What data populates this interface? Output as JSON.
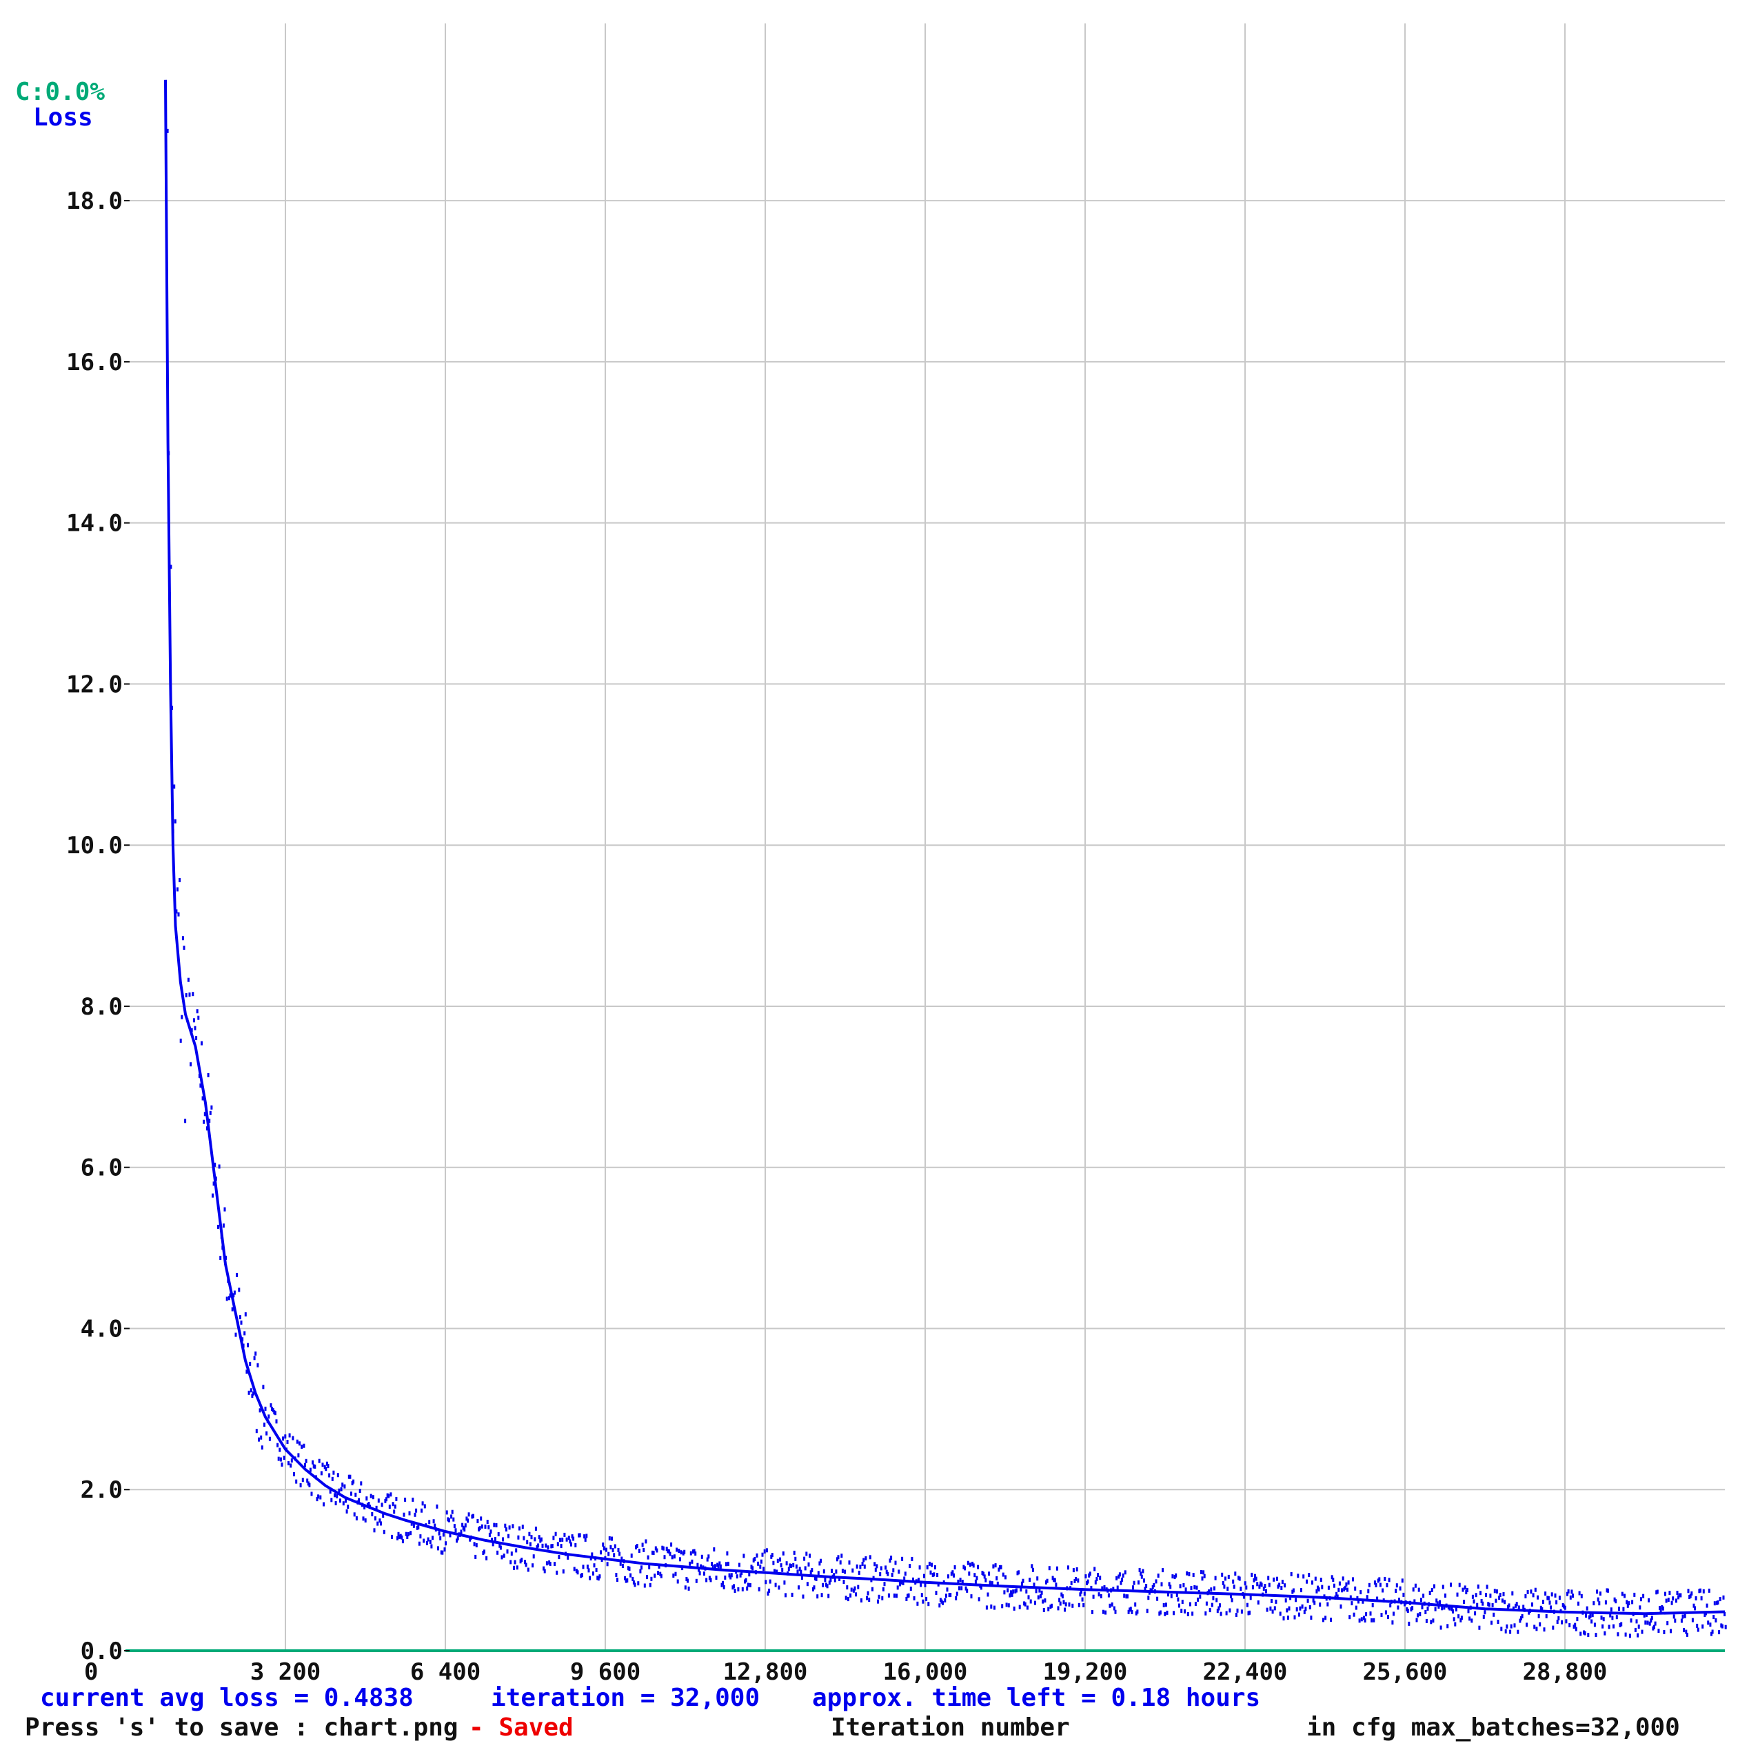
{
  "chart_data": {
    "type": "line",
    "accuracy_label": "C:0.0%",
    "loss_label": "Loss",
    "xlabel": "Iteration number",
    "ylabel": "Loss",
    "xlim": [
      0,
      32000
    ],
    "ylim": [
      0,
      20.2
    ],
    "y_ticks": [
      0,
      2,
      4,
      6,
      8,
      10,
      12,
      14,
      16,
      18
    ],
    "y_tick_labels": [
      "0.0",
      "2.0",
      "4.0",
      "6.0",
      "8.0",
      "10.0",
      "12.0",
      "14.0",
      "16.0",
      "18.0"
    ],
    "x_ticks": [
      0,
      3200,
      6400,
      9600,
      12800,
      16000,
      19200,
      22400,
      25600,
      28800
    ],
    "x_tick_labels": [
      "0",
      "3 200",
      "6 400",
      "9 600",
      "12,800",
      "16,000",
      "19,200",
      "22,400",
      "25,600",
      "28,800"
    ],
    "grid": true,
    "series": [
      {
        "name": "Loss",
        "color": "#0000ee",
        "x": [
          800,
          850,
          900,
          950,
          1000,
          1100,
          1200,
          1400,
          1600,
          1800,
          2000,
          2200,
          2400,
          2600,
          2800,
          3000,
          3200,
          3600,
          4000,
          4400,
          4800,
          5200,
          5600,
          6000,
          6400,
          7200,
          8000,
          8800,
          9600,
          10400,
          11200,
          12000,
          12800,
          14000,
          15200,
          16000,
          17600,
          19200,
          20800,
          22400,
          24000,
          25600,
          27200,
          28800,
          30400,
          32000
        ],
        "y": [
          19.5,
          15.0,
          12.0,
          10.0,
          9.0,
          8.3,
          7.9,
          7.5,
          6.8,
          5.8,
          4.8,
          4.2,
          3.6,
          3.2,
          2.9,
          2.7,
          2.5,
          2.25,
          2.05,
          1.9,
          1.8,
          1.7,
          1.62,
          1.55,
          1.48,
          1.37,
          1.28,
          1.2,
          1.14,
          1.08,
          1.04,
          1.0,
          0.97,
          0.92,
          0.88,
          0.85,
          0.8,
          0.76,
          0.73,
          0.7,
          0.66,
          0.6,
          0.52,
          0.48,
          0.46,
          0.4838
        ]
      }
    ],
    "accuracy_series": {
      "name": "C:0.0%",
      "color": "#00aa77",
      "x": [
        0,
        32000
      ],
      "y": [
        0,
        0
      ]
    }
  },
  "status": {
    "current_avg_loss": "current avg loss = 0.4838",
    "iteration": "iteration = 32,000",
    "time_left": "approx. time left = 0.18 hours",
    "save_hint": "Press 's' to save : chart.png",
    "saved": "- Saved",
    "xlabel": "Iteration number",
    "max_batches": "in cfg max_batches=32,000"
  },
  "colors": {
    "loss": "#0000ee",
    "accuracy": "#00aa77",
    "saved": "#ee0000",
    "grid": "#c8c8c8",
    "text": "#111111"
  }
}
